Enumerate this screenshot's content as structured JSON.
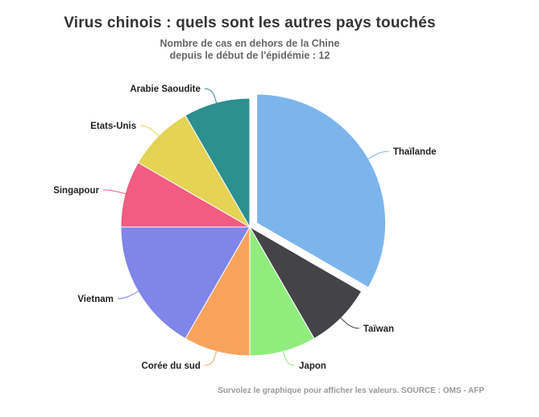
{
  "chart_data": {
    "type": "pie",
    "title": "Virus chinois : quels sont les autres pays touchés",
    "subtitle_lines": [
      "Nombre de cas en dehors de la Chine",
      "depuis le début de l'épidémie : 12"
    ],
    "credits": "Survolez le graphique pour afficher les valeurs. SOURCE : OMS - AFP",
    "slices": [
      {
        "name": "Thaïlande",
        "value": 4,
        "color": "#7cb5ec",
        "sliced": true
      },
      {
        "name": "Taïwan",
        "value": 1,
        "color": "#434348"
      },
      {
        "name": "Japon",
        "value": 1,
        "color": "#90ed7d"
      },
      {
        "name": "Corée du sud",
        "value": 1,
        "color": "#f7a35c"
      },
      {
        "name": "Vietnam",
        "value": 2,
        "color": "#8085e9"
      },
      {
        "name": "Singapour",
        "value": 1,
        "color": "#f15c80"
      },
      {
        "name": "Etats-Unis",
        "value": 1,
        "color": "#e4d354"
      },
      {
        "name": "Arabie Saoudite",
        "value": 1,
        "color": "#2b908f"
      }
    ]
  }
}
